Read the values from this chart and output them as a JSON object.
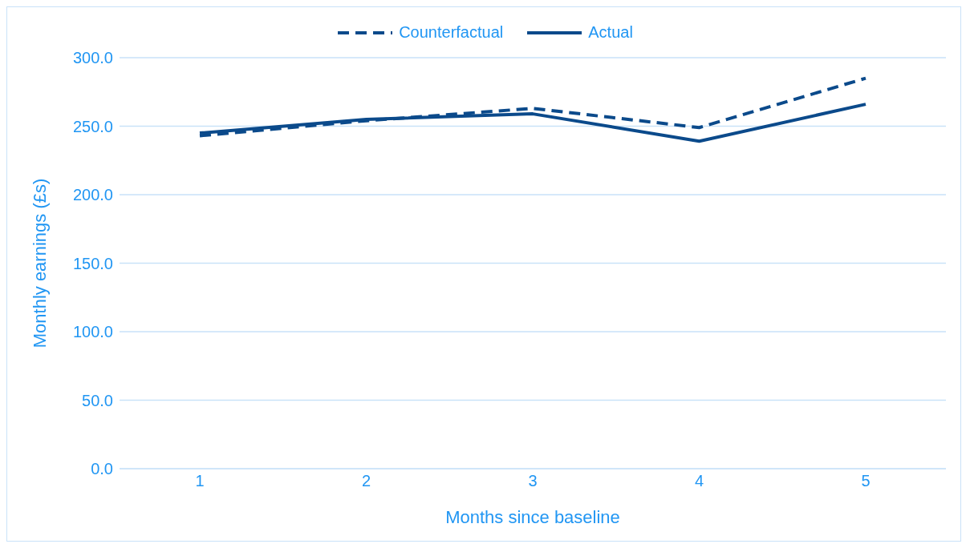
{
  "chart_data": {
    "type": "line",
    "xlabel": "Months since baseline",
    "ylabel": "Monthly earnings (£s)",
    "categories": [
      "1",
      "2",
      "3",
      "4",
      "5"
    ],
    "ylim": [
      0,
      300
    ],
    "yticks": [
      {
        "value": 0,
        "label": "0.0"
      },
      {
        "value": 50,
        "label": "50.0"
      },
      {
        "value": 100,
        "label": "100.0"
      },
      {
        "value": 150,
        "label": "150.0"
      },
      {
        "value": 200,
        "label": "200.0"
      },
      {
        "value": 250,
        "label": "250.0"
      },
      {
        "value": 300,
        "label": "300.0"
      }
    ],
    "grid": "y",
    "legend": "top",
    "marker": "none",
    "series": [
      {
        "name": "Counterfactual",
        "color": "#0b4a8b",
        "line_style": "dashed",
        "values": [
          243,
          254,
          263,
          249,
          285
        ]
      },
      {
        "name": "Actual",
        "color": "#0b4a8b",
        "line_style": "solid",
        "values": [
          245,
          255,
          259,
          239,
          266
        ]
      }
    ]
  }
}
